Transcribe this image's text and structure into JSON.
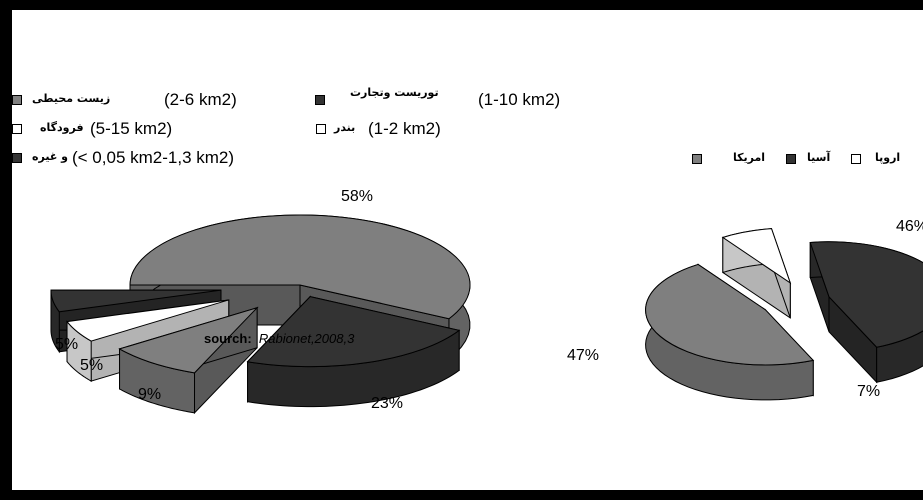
{
  "chart_data": [
    {
      "type": "pie",
      "legend": [
        {
          "label_fa": "زیست محیطی",
          "range": "(2-6 km2)",
          "color": "#7f7f7f"
        },
        {
          "label_fa": "توریست وتجارت",
          "range": "(1-10 km2)",
          "color": "#333333"
        },
        {
          "label_fa": "فرودگاه",
          "range": "(5-15 km2)",
          "color": "#ffffff"
        },
        {
          "label_fa": "بندر",
          "range": "(1-2 km2)",
          "color": "#ffffff"
        },
        {
          "label_fa": "و غیره",
          "range": "(< 0,05 km2-1,3 km2)",
          "color": "#333333"
        }
      ],
      "slices": [
        {
          "label": "58%",
          "value": 58,
          "color": "#7f7f7f"
        },
        {
          "label": "23%",
          "value": 23,
          "color": "#333333"
        },
        {
          "label": "9%",
          "value": 9,
          "color": "#7f7f7f"
        },
        {
          "label": "5%",
          "value": 5,
          "color": "#ffffff"
        },
        {
          "label": "5%",
          "value": 5,
          "color": "#333333"
        }
      ]
    },
    {
      "type": "pie",
      "legend": [
        {
          "label_fa": "امریکا",
          "color": "#7f7f7f"
        },
        {
          "label_fa": "آسیا",
          "color": "#333333"
        },
        {
          "label_fa": "اروپا",
          "color": "#ffffff"
        }
      ],
      "slices": [
        {
          "label": "46%",
          "value": 46,
          "color": "#333333"
        },
        {
          "label": "47%",
          "value": 47,
          "color": "#7f7f7f"
        },
        {
          "label": "7%",
          "value": 7,
          "color": "#ffffff"
        }
      ]
    }
  ],
  "source": {
    "prefix": "sourch:",
    "text": "Rabionet,2008,3"
  }
}
